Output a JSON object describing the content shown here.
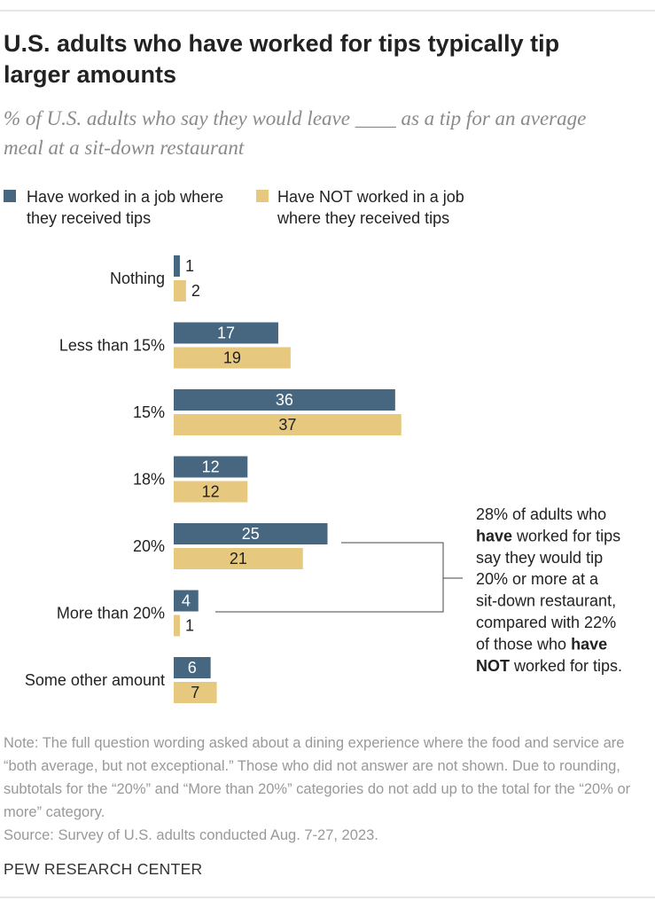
{
  "chart_data": {
    "type": "hbar",
    "title": "U.S. adults who have worked for tips typically tip larger amounts",
    "subtitle": "% of U.S. adults who say they would leave ____ as a tip for an average meal at a sit-down restaurant",
    "categories": [
      "Nothing",
      "Less than 15%",
      "15%",
      "18%",
      "20%",
      "More than 20%",
      "Some other amount"
    ],
    "series": [
      {
        "name": "Have worked in a job where they received tips",
        "color": "#46677f",
        "values": [
          1,
          17,
          36,
          12,
          25,
          4,
          6
        ]
      },
      {
        "name": "Have NOT worked in a job where they received tips",
        "color": "#e6c97f",
        "values": [
          2,
          19,
          37,
          12,
          21,
          1,
          7
        ]
      }
    ],
    "annotation": [
      [
        {
          "text": "28% of adults who"
        }
      ],
      [
        {
          "text": "have",
          "bold": true
        },
        {
          "text": " worked for tips"
        }
      ],
      [
        {
          "text": "say they would tip"
        }
      ],
      [
        {
          "text": "20% or more at a"
        }
      ],
      [
        {
          "text": "sit-down restaurant,"
        }
      ],
      [
        {
          "text": "compared with 22%"
        }
      ],
      [
        {
          "text": "of those who "
        },
        {
          "text": "have",
          "bold": true
        }
      ],
      [
        {
          "text": "NOT",
          "bold": true
        },
        {
          "text": " worked for tips."
        }
      ]
    ],
    "note": "Note: The full question wording asked about a dining experience where the food and service are “both average, but not exceptional.” Those who did not answer are not shown. Due to rounding, subtotals for the “20%” and “More than 20%” categories do not add up to the total for the “20% or more” category.",
    "source": "Source: Survey of U.S. adults conducted Aug. 7-27, 2023.",
    "footer": "PEW RESEARCH CENTER"
  }
}
